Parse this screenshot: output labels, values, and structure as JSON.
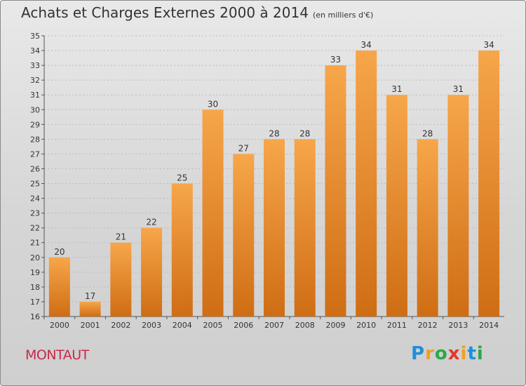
{
  "header": {
    "title": "Achats et Charges Externes 2000 à 2014",
    "unit": "(en milliers d'€)"
  },
  "footer": {
    "city": "MONTAUT",
    "logo_letters": [
      "P",
      "r",
      "o",
      "x",
      "i",
      "t",
      "i"
    ],
    "logo_colors": [
      "#1e90d8",
      "#f0a020",
      "#2aa84a",
      "#e8342c",
      "#f0a020",
      "#1e90d8",
      "#2aa84a"
    ]
  },
  "colors": {
    "bar_light": "#f7a64a",
    "bar_dark": "#cf6d14",
    "city": "#c8284a"
  },
  "chart_data": {
    "type": "bar",
    "categories": [
      "2000",
      "2001",
      "2002",
      "2003",
      "2004",
      "2005",
      "2006",
      "2007",
      "2008",
      "2009",
      "2010",
      "2011",
      "2012",
      "2013",
      "2014"
    ],
    "values": [
      20,
      17,
      21,
      22,
      25,
      30,
      27,
      28,
      28,
      33,
      34,
      31,
      28,
      31,
      34
    ],
    "title": "Achats et Charges Externes 2000 à 2014",
    "subtitle": "(en milliers d'€)",
    "xlabel": "",
    "ylabel": "",
    "ylim": [
      16,
      35
    ],
    "yticks": [
      16,
      17,
      18,
      19,
      20,
      21,
      22,
      23,
      24,
      25,
      26,
      27,
      28,
      29,
      30,
      31,
      32,
      33,
      34,
      35
    ],
    "grid": true,
    "data_labels": true
  }
}
